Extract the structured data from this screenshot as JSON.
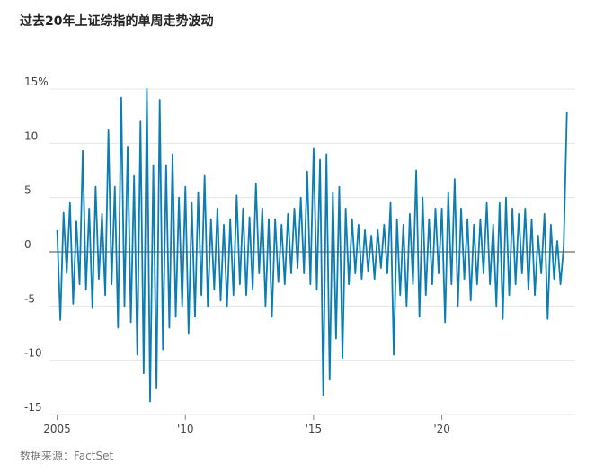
{
  "chart_data": {
    "type": "line",
    "title": "过去20年上证综指的单周走势波动",
    "source": "数据来源：FactSet",
    "x": [
      2005,
      2005.125,
      2005.25,
      2005.375,
      2005.5,
      2005.625,
      2005.75,
      2005.875,
      2006,
      2006.125,
      2006.25,
      2006.375,
      2006.5,
      2006.625,
      2006.75,
      2006.875,
      2007,
      2007.125,
      2007.25,
      2007.375,
      2007.5,
      2007.625,
      2007.75,
      2007.875,
      2008,
      2008.125,
      2008.25,
      2008.375,
      2008.5,
      2008.625,
      2008.75,
      2008.875,
      2009,
      2009.125,
      2009.25,
      2009.375,
      2009.5,
      2009.625,
      2009.75,
      2009.875,
      2010,
      2010.125,
      2010.25,
      2010.375,
      2010.5,
      2010.625,
      2010.75,
      2010.875,
      2011,
      2011.125,
      2011.25,
      2011.375,
      2011.5,
      2011.625,
      2011.75,
      2011.875,
      2012,
      2012.125,
      2012.25,
      2012.375,
      2012.5,
      2012.625,
      2012.75,
      2012.875,
      2013,
      2013.125,
      2013.25,
      2013.375,
      2013.5,
      2013.625,
      2013.75,
      2013.875,
      2014,
      2014.125,
      2014.25,
      2014.375,
      2014.5,
      2014.625,
      2014.75,
      2014.875,
      2015,
      2015.125,
      2015.25,
      2015.375,
      2015.5,
      2015.625,
      2015.75,
      2015.875,
      2016,
      2016.125,
      2016.25,
      2016.375,
      2016.5,
      2016.625,
      2016.75,
      2016.875,
      2017,
      2017.125,
      2017.25,
      2017.375,
      2017.5,
      2017.625,
      2017.75,
      2017.875,
      2018,
      2018.125,
      2018.25,
      2018.375,
      2018.5,
      2018.625,
      2018.75,
      2018.875,
      2019,
      2019.125,
      2019.25,
      2019.375,
      2019.5,
      2019.625,
      2019.75,
      2019.875,
      2020,
      2020.125,
      2020.25,
      2020.375,
      2020.5,
      2020.625,
      2020.75,
      2020.875,
      2021,
      2021.125,
      2021.25,
      2021.375,
      2021.5,
      2021.625,
      2021.75,
      2021.875,
      2022,
      2022.125,
      2022.25,
      2022.375,
      2022.5,
      2022.625,
      2022.75,
      2022.875,
      2023,
      2023.125,
      2023.25,
      2023.375,
      2023.5,
      2023.625,
      2023.75,
      2023.875,
      2024,
      2024.125,
      2024.25,
      2024.375,
      2024.5,
      2024.625,
      2024.75,
      2024.875
    ],
    "series": [
      {
        "color": "#0b7db3",
        "values": [
          2,
          -6.3,
          3.6,
          -2,
          4.5,
          -4.8,
          2.8,
          -3,
          9.3,
          -3.5,
          4,
          -5.2,
          6,
          -2.5,
          3.5,
          -4,
          11.2,
          -3,
          6,
          -7,
          14.2,
          -5,
          9.7,
          -6.5,
          7,
          -9.5,
          12,
          -11.2,
          15,
          -13.8,
          8,
          -12.6,
          14,
          -9,
          8,
          -7,
          9,
          -6,
          5,
          -5,
          6,
          -7.5,
          4.5,
          -6,
          5.5,
          -4,
          7,
          -5,
          3,
          -3.5,
          4,
          -4.5,
          2.5,
          -5,
          3,
          -4,
          5.2,
          -3,
          4,
          -4,
          3.2,
          -3.5,
          6.3,
          -2,
          4,
          -5,
          3,
          -6,
          3,
          -2.8,
          2.5,
          -3,
          3.5,
          -2,
          4,
          -1.5,
          5,
          -2,
          7.4,
          -3,
          9.5,
          -3.5,
          8.5,
          -13.2,
          9,
          -11.8,
          5.5,
          -8,
          6,
          -9.8,
          4,
          -3,
          3,
          -2,
          2.5,
          -2.5,
          2,
          -1.8,
          1.5,
          -2.5,
          2,
          -1.5,
          2.5,
          -2,
          4.5,
          -9.5,
          3,
          -4,
          2.5,
          -5,
          3.5,
          -3,
          7.5,
          -6,
          5,
          -4,
          3,
          -3,
          4,
          -2,
          4,
          -6.5,
          5.5,
          -3,
          6.7,
          -5,
          4,
          -2.5,
          3,
          -4.5,
          2.5,
          -3,
          3,
          -2,
          4.5,
          -3,
          2.5,
          -5,
          4.5,
          -6.2,
          5,
          -4,
          4,
          -3,
          3.5,
          -2,
          4,
          -3.5,
          3,
          -4,
          1.5,
          -2,
          3.5,
          -6.2,
          2.5,
          -2.5,
          1,
          -3,
          0.5,
          12.9
        ]
      }
    ],
    "xlim": [
      2004.7,
      2025.2
    ],
    "ylim": [
      -15,
      15
    ],
    "xticks": [
      2005,
      {
        "value": 2010,
        "label": "'10"
      },
      {
        "value": 2015,
        "label": "'15"
      },
      {
        "value": 2020,
        "label": "'20"
      }
    ],
    "yticks": [
      {
        "value": 15,
        "label": "15%"
      },
      10,
      5,
      0,
      -5,
      -10,
      -15
    ],
    "grid": true
  }
}
